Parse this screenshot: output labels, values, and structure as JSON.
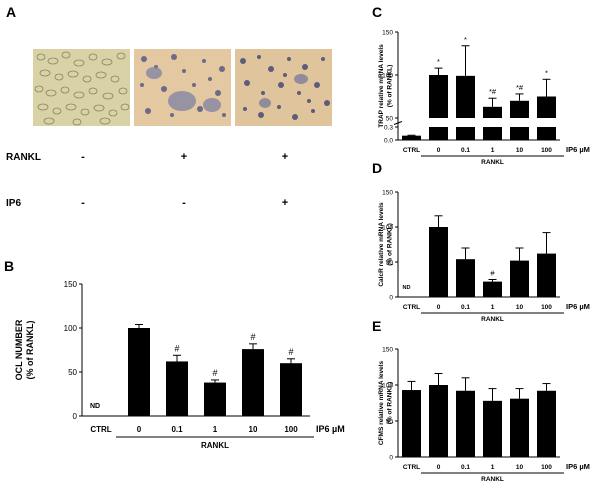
{
  "panel_letters": {
    "a": "A",
    "b": "B",
    "c": "C",
    "d": "D",
    "e": "E"
  },
  "panel_a": {
    "conditions": [
      {
        "label": "RANKL",
        "values": [
          "-",
          "+",
          "+"
        ]
      },
      {
        "label": "IP6",
        "values": [
          "-",
          "-",
          "+"
        ]
      }
    ]
  },
  "chart_data": [
    {
      "panel": "B",
      "type": "bar",
      "categories": [
        "CTRL",
        "0",
        "0.1",
        "1",
        "10",
        "100"
      ],
      "values": [
        null,
        100,
        62,
        38,
        76,
        60
      ],
      "errors": [
        null,
        4,
        7,
        3,
        6,
        5
      ],
      "annotations": [
        "ND",
        "",
        "#",
        "#",
        "#",
        "#"
      ],
      "ylabel": "OCL NUMBER (% of RANKL)",
      "ylim": [
        0,
        150
      ],
      "yticks": [
        "0",
        "50",
        "100",
        "150"
      ],
      "xlabel": "IP6 µM",
      "group_label": "RANKL"
    },
    {
      "panel": "C",
      "type": "bar",
      "categories": [
        "CTRL",
        "0",
        "0.1",
        "1",
        "10",
        "100"
      ],
      "values": [
        0.1,
        100,
        99,
        63,
        70,
        75
      ],
      "errors": [
        0.01,
        8,
        35,
        10,
        8,
        20
      ],
      "annotations": [
        "",
        "*",
        "*",
        "*#",
        "*#",
        "*"
      ],
      "ylabel": "TRAP relative mRNA levels (% of RANKL)",
      "ylim": [
        0,
        150
      ],
      "yticks": [
        "0.0",
        "0.3",
        "50",
        "100",
        "150"
      ],
      "axis_break": [
        0.3,
        50
      ],
      "xlabel": "IP6 µM",
      "group_label": "RANKL"
    },
    {
      "panel": "D",
      "type": "bar",
      "categories": [
        "CTRL",
        "0",
        "0.1",
        "1",
        "10",
        "100"
      ],
      "values": [
        null,
        100,
        54,
        22,
        52,
        62
      ],
      "errors": [
        null,
        16,
        16,
        3,
        18,
        30
      ],
      "annotations": [
        "ND",
        "",
        "",
        "#",
        "",
        ""
      ],
      "ylabel": "CalcR relative mRNA levels (% of RANKL)",
      "ylim": [
        0,
        150
      ],
      "yticks": [
        "0",
        "50",
        "100",
        "150"
      ],
      "xlabel": "IP6 µM",
      "group_label": "RANKL"
    },
    {
      "panel": "E",
      "type": "bar",
      "categories": [
        "CTRL",
        "0",
        "0.1",
        "1",
        "10",
        "100"
      ],
      "values": [
        93,
        100,
        92,
        78,
        81,
        92
      ],
      "errors": [
        12,
        16,
        18,
        17,
        14,
        10
      ],
      "annotations": [
        "",
        "",
        "",
        "",
        "",
        ""
      ],
      "ylabel": "CFMS relative mRNA levels (% of RANKL)",
      "ylim": [
        0,
        150
      ],
      "yticks": [
        "0",
        "50",
        "100",
        "150"
      ],
      "xlabel": "IP6 µM",
      "group_label": "RANKL"
    }
  ]
}
